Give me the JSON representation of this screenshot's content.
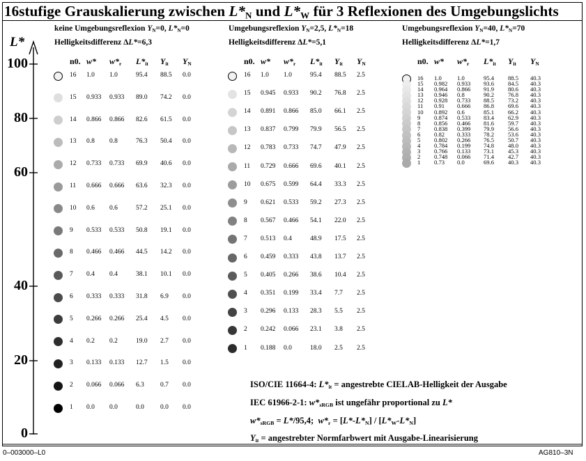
{
  "title": {
    "part1": "16stufige Grauskalierung zwischen ",
    "lstar": "L*",
    "subN": "N",
    "part2": " und ",
    "subW": "W",
    "part3": " für 3 Reflexionen des Umgebungslichts"
  },
  "axis": {
    "label": "L*",
    "ticks": [
      "100",
      "80",
      "60",
      "40",
      "20",
      "0"
    ]
  },
  "panel1": {
    "heading": "keine Umgebungsreflexion Yₙ=0, L*ₙ=0",
    "diff": "Helligkeitsdifferenz ΔL*=6,3",
    "rows": [
      {
        "n": "16",
        "w": "1.0",
        "wr": "1.0",
        "L": "95.4",
        "Y": "88.5",
        "YN": "0.0"
      },
      {
        "n": "15",
        "w": "0.933",
        "wr": "0.933",
        "L": "89.0",
        "Y": "74.2",
        "YN": "0.0"
      },
      {
        "n": "14",
        "w": "0.866",
        "wr": "0.866",
        "L": "82.6",
        "Y": "61.5",
        "YN": "0.0"
      },
      {
        "n": "13",
        "w": "0.8",
        "wr": "0.8",
        "L": "76.3",
        "Y": "50.4",
        "YN": "0.0"
      },
      {
        "n": "12",
        "w": "0.733",
        "wr": "0.733",
        "L": "69.9",
        "Y": "40.6",
        "YN": "0.0"
      },
      {
        "n": "11",
        "w": "0.666",
        "wr": "0.666",
        "L": "63.6",
        "Y": "32.3",
        "YN": "0.0"
      },
      {
        "n": "10",
        "w": "0.6",
        "wr": "0.6",
        "L": "57.2",
        "Y": "25.1",
        "YN": "0.0"
      },
      {
        "n": "9",
        "w": "0.533",
        "wr": "0.533",
        "L": "50.8",
        "Y": "19.1",
        "YN": "0.0"
      },
      {
        "n": "8",
        "w": "0.466",
        "wr": "0.466",
        "L": "44.5",
        "Y": "14.2",
        "YN": "0.0"
      },
      {
        "n": "7",
        "w": "0.4",
        "wr": "0.4",
        "L": "38.1",
        "Y": "10.1",
        "YN": "0.0"
      },
      {
        "n": "6",
        "w": "0.333",
        "wr": "0.333",
        "L": "31.8",
        "Y": "6.9",
        "YN": "0.0"
      },
      {
        "n": "5",
        "w": "0.266",
        "wr": "0.266",
        "L": "25.4",
        "Y": "4.5",
        "YN": "0.0"
      },
      {
        "n": "4",
        "w": "0.2",
        "wr": "0.2",
        "L": "19.0",
        "Y": "2.7",
        "YN": "0.0"
      },
      {
        "n": "3",
        "w": "0.133",
        "wr": "0.133",
        "L": "12.7",
        "Y": "1.5",
        "YN": "0.0"
      },
      {
        "n": "2",
        "w": "0.066",
        "wr": "0.066",
        "L": "6.3",
        "Y": "0.7",
        "YN": "0.0"
      },
      {
        "n": "1",
        "w": "0.0",
        "wr": "0.0",
        "L": "0.0",
        "Y": "0.0",
        "YN": "0.0"
      }
    ]
  },
  "panel2": {
    "heading": "Umgebungsreflexion Yₙ=2,5, L*ₙ=18",
    "diff": "Helligkeitsdifferenz ΔL*=5,1",
    "rows": [
      {
        "n": "16",
        "w": "1.0",
        "wr": "1.0",
        "L": "95.4",
        "Y": "88.5",
        "YN": "2.5"
      },
      {
        "n": "15",
        "w": "0.945",
        "wr": "0.933",
        "L": "90.2",
        "Y": "76.8",
        "YN": "2.5"
      },
      {
        "n": "14",
        "w": "0.891",
        "wr": "0.866",
        "L": "85.0",
        "Y": "66.1",
        "YN": "2.5"
      },
      {
        "n": "13",
        "w": "0.837",
        "wr": "0.799",
        "L": "79.9",
        "Y": "56.5",
        "YN": "2.5"
      },
      {
        "n": "12",
        "w": "0.783",
        "wr": "0.733",
        "L": "74.7",
        "Y": "47.9",
        "YN": "2.5"
      },
      {
        "n": "11",
        "w": "0.729",
        "wr": "0.666",
        "L": "69.6",
        "Y": "40.1",
        "YN": "2.5"
      },
      {
        "n": "10",
        "w": "0.675",
        "wr": "0.599",
        "L": "64.4",
        "Y": "33.3",
        "YN": "2.5"
      },
      {
        "n": "9",
        "w": "0.621",
        "wr": "0.533",
        "L": "59.2",
        "Y": "27.3",
        "YN": "2.5"
      },
      {
        "n": "8",
        "w": "0.567",
        "wr": "0.466",
        "L": "54.1",
        "Y": "22.0",
        "YN": "2.5"
      },
      {
        "n": "7",
        "w": "0.513",
        "wr": "0.4",
        "L": "48.9",
        "Y": "17.5",
        "YN": "2.5"
      },
      {
        "n": "6",
        "w": "0.459",
        "wr": "0.333",
        "L": "43.8",
        "Y": "13.7",
        "YN": "2.5"
      },
      {
        "n": "5",
        "w": "0.405",
        "wr": "0.266",
        "L": "38.6",
        "Y": "10.4",
        "YN": "2.5"
      },
      {
        "n": "4",
        "w": "0.351",
        "wr": "0.199",
        "L": "33.4",
        "Y": "7.7",
        "YN": "2.5"
      },
      {
        "n": "3",
        "w": "0.296",
        "wr": "0.133",
        "L": "28.3",
        "Y": "5.5",
        "YN": "2.5"
      },
      {
        "n": "2",
        "w": "0.242",
        "wr": "0.066",
        "L": "23.1",
        "Y": "3.8",
        "YN": "2.5"
      },
      {
        "n": "1",
        "w": "0.188",
        "wr": "0.0",
        "L": "18.0",
        "Y": "2.5",
        "YN": "2.5"
      }
    ]
  },
  "panel3": {
    "heading": "Umgebungsreflexion Yₙ=40, L*ₙ=70",
    "diff": "Helligkeitsdifferenz ΔL*=1,7",
    "rows": [
      {
        "n": "16",
        "w": "1.0",
        "wr": "1.0",
        "L": "95.4",
        "Y": "88.5",
        "YN": "40.3"
      },
      {
        "n": "15",
        "w": "0.982",
        "wr": "0.933",
        "L": "93.6",
        "Y": "84.5",
        "YN": "40.3"
      },
      {
        "n": "14",
        "w": "0.964",
        "wr": "0.866",
        "L": "91.9",
        "Y": "80.6",
        "YN": "40.3"
      },
      {
        "n": "13",
        "w": "0.946",
        "wr": "0.8",
        "L": "90.2",
        "Y": "76.8",
        "YN": "40.3"
      },
      {
        "n": "12",
        "w": "0.928",
        "wr": "0.733",
        "L": "88.5",
        "Y": "73.2",
        "YN": "40.3"
      },
      {
        "n": "11",
        "w": "0.91",
        "wr": "0.666",
        "L": "86.8",
        "Y": "69.6",
        "YN": "40.3"
      },
      {
        "n": "10",
        "w": "0.892",
        "wr": "0.6",
        "L": "85.1",
        "Y": "66.2",
        "YN": "40.3"
      },
      {
        "n": "9",
        "w": "0.874",
        "wr": "0.533",
        "L": "83.4",
        "Y": "62.9",
        "YN": "40.3"
      },
      {
        "n": "8",
        "w": "0.856",
        "wr": "0.466",
        "L": "81.6",
        "Y": "59.7",
        "YN": "40.3"
      },
      {
        "n": "7",
        "w": "0.838",
        "wr": "0.399",
        "L": "79.9",
        "Y": "56.6",
        "YN": "40.3"
      },
      {
        "n": "6",
        "w": "0.82",
        "wr": "0.333",
        "L": "78.2",
        "Y": "53.6",
        "YN": "40.3"
      },
      {
        "n": "5",
        "w": "0.802",
        "wr": "0.266",
        "L": "76.5",
        "Y": "50.7",
        "YN": "40.3"
      },
      {
        "n": "4",
        "w": "0.784",
        "wr": "0.199",
        "L": "74.8",
        "Y": "48.0",
        "YN": "40.3"
      },
      {
        "n": "3",
        "w": "0.766",
        "wr": "0.133",
        "L": "73.1",
        "Y": "45.3",
        "YN": "40.3"
      },
      {
        "n": "2",
        "w": "0.748",
        "wr": "0.066",
        "L": "71.4",
        "Y": "42.7",
        "YN": "40.3"
      },
      {
        "n": "1",
        "w": "0.73",
        "wr": "0.0",
        "L": "69.6",
        "Y": "40.3",
        "YN": "40.3"
      }
    ]
  },
  "column_headers": {
    "n0": "n0.",
    "w": "w*",
    "wr": "w*r",
    "L": "L*it",
    "Y": "Yit",
    "YN": "YN"
  },
  "notes": [
    "ISO/CIE 11664-4: L*it = angestrebte CIELAB-Helligkeit der Ausgabe",
    "IEC 61966-2-1: w*sRGB ist ungefähr proportional zu L*",
    "w*sRGB = L*/95,4;  w*r = [L*-L*N] / [L*W-L*N]",
    "Yit = angestrebter Normfarbwert mit Ausgabe-Linearisierung"
  ],
  "footer": {
    "left": "0–003000–L0",
    "right": "AG810–3N"
  }
}
